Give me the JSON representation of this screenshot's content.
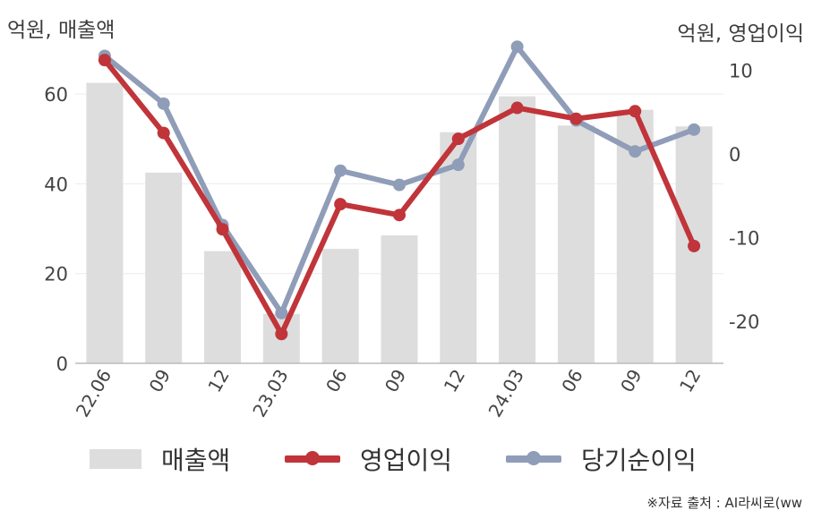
{
  "units": {
    "left": "억원, 매출액",
    "right": "억원, 영업이익"
  },
  "legend": [
    {
      "label": "매출액",
      "kind": "bar",
      "color": "#dddddd"
    },
    {
      "label": "영업이익",
      "kind": "line",
      "color": "#c0343a"
    },
    {
      "label": "당기순이익",
      "kind": "line",
      "color": "#8f9db8"
    }
  ],
  "source": "※자료 출처 : AI라씨로(ww",
  "chart_data": {
    "type": "bar",
    "categories": [
      "22.06",
      "09",
      "12",
      "23.03",
      "06",
      "09",
      "12",
      "24.03",
      "06",
      "09",
      "12"
    ],
    "y_left": {
      "label": "억원, 매출액",
      "range": [
        0,
        70
      ],
      "ticks": [
        0,
        20,
        40,
        60
      ]
    },
    "y_right": {
      "label": "억원, 영업이익",
      "range": [
        -25,
        12.5
      ],
      "ticks": [
        -20,
        -10,
        0,
        10
      ]
    },
    "grid": true,
    "legend_position": "bottom",
    "series": [
      {
        "name": "매출액",
        "type": "bar",
        "axis": "left",
        "color": "#dddddd",
        "values": [
          62.5,
          42.5,
          25,
          11,
          25.5,
          28.5,
          51.5,
          59.5,
          53,
          56.5,
          52.8
        ]
      },
      {
        "name": "영업이익",
        "type": "line",
        "axis": "right",
        "color": "#c0343a",
        "values": [
          11.2,
          2.5,
          -9,
          -21.5,
          -6,
          -7.3,
          1.8,
          5.5,
          4.2,
          5.1,
          -11
        ]
      },
      {
        "name": "당기순이익",
        "type": "line",
        "axis": "right",
        "color": "#8f9db8",
        "values": [
          11.7,
          6,
          -8.5,
          -19,
          -2,
          -3.7,
          -1.3,
          12.8,
          4,
          0.3,
          2.9
        ]
      }
    ]
  }
}
